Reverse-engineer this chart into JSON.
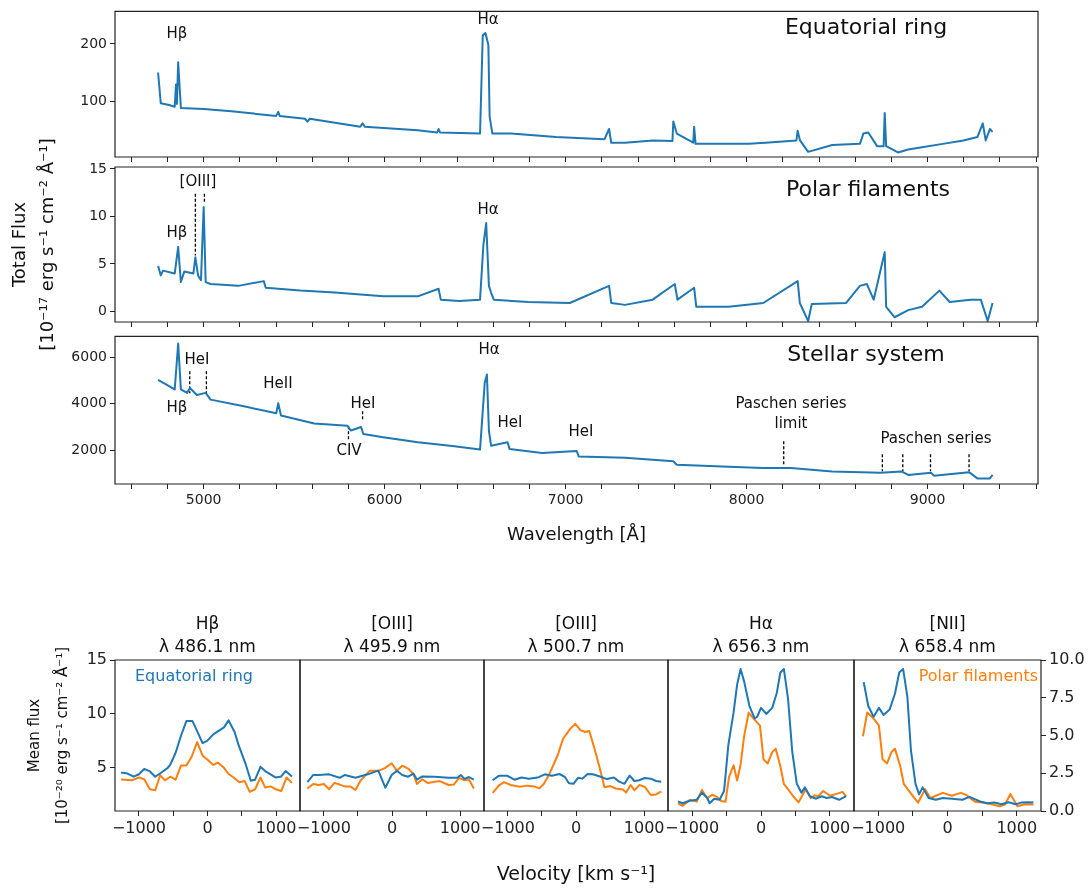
{
  "chart_data": [
    {
      "type": "line",
      "annotations": [
        "Equatorial ring",
        "Hβ",
        "Hα"
      ],
      "tick_labels": "y",
      "series": [
        {
          "color": "#1f77b4",
          "x": [
            4748,
            4763,
            4809,
            4840,
            4847,
            4852,
            4859,
            4874,
            5000,
            5153,
            5400,
            5412,
            5420,
            5560,
            5573,
            5586,
            5865,
            5878,
            5890,
            6183,
            6290,
            6298,
            6306,
            6527,
            6542,
            6557,
            6573,
            6580,
            6595,
            6698,
            6947,
            7214,
            7240,
            7252,
            7328,
            7481,
            7590,
            7595,
            7614,
            7705,
            7710,
            7718,
            7901,
            8015,
            8275,
            8282,
            8295,
            8340,
            8473,
            8626,
            8645,
            8672,
            8721,
            8757,
            8763,
            8771,
            8836,
            8893,
            8969,
            9084,
            9198,
            9275,
            9305,
            9321,
            9344,
            9359
          ],
          "values": [
            150,
            96,
            93,
            90,
            129,
            95,
            168,
            88,
            86,
            82,
            74,
            81,
            74,
            69,
            64,
            69,
            55,
            61,
            55,
            49,
            45,
            51,
            45,
            43,
            215,
            219,
            198,
            73,
            43,
            43,
            37,
            33,
            51,
            27,
            27,
            31,
            30,
            64,
            43,
            27,
            55,
            25,
            25,
            25,
            31,
            48,
            31,
            11,
            23,
            25,
            43,
            45,
            21,
            21,
            79,
            21,
            10,
            15,
            19,
            25,
            31,
            37,
            61,
            31,
            51,
            46
          ]
        }
      ],
      "xlim": [
        4510,
        9610
      ],
      "xticks": [
        {
          "value": 4600,
          "label": null
        },
        {
          "value": 4800,
          "label": null
        },
        5000,
        {
          "value": 5200,
          "label": null
        },
        {
          "value": 5400,
          "label": null
        },
        {
          "value": 5600,
          "label": null
        },
        {
          "value": 5800,
          "label": null
        },
        6000,
        {
          "value": 6200,
          "label": null
        },
        {
          "value": 6400,
          "label": null
        },
        {
          "value": 6600,
          "label": null
        },
        {
          "value": 6800,
          "label": null
        },
        7000,
        {
          "value": 7200,
          "label": null
        },
        {
          "value": 7400,
          "label": null
        },
        {
          "value": 7600,
          "label": null
        },
        {
          "value": 7800,
          "label": null
        },
        8000,
        {
          "value": 8200,
          "label": null
        },
        {
          "value": 8400,
          "label": null
        },
        {
          "value": 8600,
          "label": null
        },
        {
          "value": 8800,
          "label": null
        },
        9000,
        {
          "value": 9200,
          "label": null
        },
        {
          "value": 9400,
          "label": null
        },
        {
          "value": 9600,
          "label": null
        }
      ],
      "ylim": [
        2,
        257
      ],
      "yticks": [
        100,
        200
      ]
    },
    {
      "type": "line",
      "ylabel": "Total Flux\n[10⁻¹⁷ erg s⁻¹ cm⁻² Å⁻¹]",
      "annotations": [
        "Polar filaments",
        "Hβ",
        "[OIII]",
        "Hα"
      ],
      "tick_labels": "y",
      "series": [
        {
          "color": "#1f77b4",
          "x": [
            4748,
            4763,
            4775,
            4840,
            4859,
            4874,
            4893,
            4943,
            4954,
            4969,
            4985,
            5000,
            5011,
            5038,
            5191,
            5332,
            5343,
            5534,
            5725,
            5992,
            6183,
            6298,
            6310,
            6412,
            6527,
            6546,
            6561,
            6576,
            6588,
            6603,
            6794,
            7023,
            7240,
            7252,
            7328,
            7481,
            7603,
            7618,
            7710,
            7722,
            7901,
            8092,
            8282,
            8294,
            8340,
            8360,
            8550,
            8626,
            8664,
            8702,
            8763,
            8771,
            8817,
            8893,
            8969,
            9065,
            9122,
            9237,
            9294,
            9332,
            9359
          ],
          "values": [
            4.8,
            3.8,
            4.3,
            4.0,
            6.8,
            3.1,
            4.2,
            4.0,
            5.7,
            3.8,
            3.3,
            11.0,
            3.1,
            2.9,
            2.7,
            3.2,
            2.5,
            2.2,
            2.0,
            1.6,
            1.6,
            2.4,
            1.25,
            1.1,
            1.25,
            7.1,
            9.3,
            2.7,
            2.0,
            1.25,
            1.0,
            0.9,
            2.7,
            0.9,
            0.7,
            1.25,
            2.9,
            1.25,
            2.5,
            0.5,
            0.5,
            0.9,
            3.2,
            0.9,
            -1.0,
            0.8,
            0.9,
            2.7,
            2.9,
            1.25,
            6.25,
            0.5,
            -0.6,
            0.15,
            0.5,
            2.2,
            1.0,
            1.25,
            1.25,
            -1.0,
            0.9
          ]
        },
        {
          "color": "#000000",
          "line_style": "dashed",
          "x": [
            4954,
            4954,
            null,
            5004,
            5004
          ],
          "values": [
            12.4,
            5.9,
            null,
            12.4,
            11.4
          ]
        }
      ],
      "xlim": [
        4510,
        9610
      ],
      "xticks": [
        {
          "value": 4600,
          "label": null
        },
        {
          "value": 4800,
          "label": null
        },
        5000,
        {
          "value": 5200,
          "label": null
        },
        {
          "value": 5400,
          "label": null
        },
        {
          "value": 5600,
          "label": null
        },
        {
          "value": 5800,
          "label": null
        },
        6000,
        {
          "value": 6200,
          "label": null
        },
        {
          "value": 6400,
          "label": null
        },
        {
          "value": 6600,
          "label": null
        },
        {
          "value": 6800,
          "label": null
        },
        7000,
        {
          "value": 7200,
          "label": null
        },
        {
          "value": 7400,
          "label": null
        },
        {
          "value": 7600,
          "label": null
        },
        {
          "value": 7800,
          "label": null
        },
        8000,
        {
          "value": 8200,
          "label": null
        },
        {
          "value": 8400,
          "label": null
        },
        {
          "value": 8600,
          "label": null
        },
        {
          "value": 8800,
          "label": null
        },
        9000,
        {
          "value": 9200,
          "label": null
        },
        {
          "value": 9400,
          "label": null
        },
        {
          "value": 9600,
          "label": null
        }
      ],
      "ylim": [
        -1.1,
        15.2
      ],
      "yticks": [
        0,
        5,
        10,
        15
      ]
    },
    {
      "type": "line",
      "xlabel": "Wavelength [Å]",
      "annotations": [
        "Stellar system",
        "Hβ",
        "HeI",
        "HeII",
        "HeI",
        "CIV",
        "Hα",
        "HeI",
        "HeI",
        "Paschen series\nlimit",
        "Paschen series"
      ],
      "series": [
        {
          "color": "#1f77b4",
          "x": [
            4748,
            4809,
            4840,
            4859,
            4874,
            4908,
            4924,
            4962,
            5011,
            5038,
            5229,
            5401,
            5412,
            5427,
            5611,
            5794,
            5813,
            5870,
            5882,
            5992,
            6183,
            6374,
            6527,
            6553,
            6565,
            6576,
            6588,
            6679,
            6690,
            6870,
            7061,
            7072,
            7328,
            7595,
            7614,
            7901,
            8092,
            8244,
            8473,
            8740,
            8855,
            8893,
            9019,
            9035,
            9229,
            9275,
            9344,
            9359
          ],
          "values": [
            5030,
            4765,
            4620,
            6590,
            4620,
            4470,
            4680,
            4380,
            4470,
            4180,
            3880,
            3590,
            4030,
            3500,
            3150,
            3060,
            2850,
            3000,
            2700,
            2560,
            2350,
            2180,
            2030,
            4910,
            5260,
            2850,
            2200,
            2350,
            2060,
            1880,
            1970,
            1735,
            1680,
            1530,
            1380,
            1290,
            1235,
            1235,
            1090,
            1030,
            1090,
            940,
            1030,
            910,
            1060,
            790,
            790,
            940
          ]
        },
        {
          "color": "#000000",
          "line_style": "dashed",
          "x": [
            4923,
            4923,
            null,
            5015,
            5015,
            null,
            5878,
            5878,
            null,
            5800,
            5800,
            null,
            8205,
            8205,
            null,
            8750,
            8750,
            null,
            8863,
            8863,
            null,
            9016,
            9016,
            null,
            9229,
            9229
          ],
          "values": [
            5400,
            4450,
            null,
            5400,
            4450,
            null,
            3680,
            3250,
            null,
            3030,
            2390,
            null,
            2390,
            1310,
            null,
            1830,
            1100,
            null,
            1830,
            1100,
            null,
            1830,
            1100,
            null,
            1830,
            1100
          ]
        }
      ],
      "xlim": [
        4510,
        9610
      ],
      "xticks": [
        {
          "value": 4600,
          "label": null
        },
        {
          "value": 4800,
          "label": null
        },
        5000,
        {
          "value": 5200,
          "label": null
        },
        {
          "value": 5400,
          "label": null
        },
        {
          "value": 5600,
          "label": null
        },
        {
          "value": 5800,
          "label": null
        },
        6000,
        {
          "value": 6200,
          "label": null
        },
        {
          "value": 6400,
          "label": null
        },
        {
          "value": 6600,
          "label": null
        },
        {
          "value": 6800,
          "label": null
        },
        7000,
        {
          "value": 7200,
          "label": null
        },
        {
          "value": 7400,
          "label": null
        },
        {
          "value": 7600,
          "label": null
        },
        {
          "value": 7800,
          "label": null
        },
        8000,
        {
          "value": 8200,
          "label": null
        },
        {
          "value": 8400,
          "label": null
        },
        {
          "value": 8600,
          "label": null
        },
        {
          "value": 8800,
          "label": null
        },
        9000,
        {
          "value": 9200,
          "label": null
        },
        {
          "value": 9400,
          "label": null
        },
        {
          "value": 9600,
          "label": null
        }
      ],
      "ylim": [
        550,
        6900
      ],
      "yticks": [
        2000,
        4000,
        6000
      ]
    },
    {
      "type": "line",
      "title": "Hβ",
      "subtitle": "λ 486.1 nm",
      "ylabel": "Mean flux\n[10⁻²⁰ erg s⁻¹ cm⁻² Å⁻¹]",
      "legend": "top left",
      "tick_labels": [
        "x",
        "y"
      ],
      "y2lim": [
        0,
        10
      ],
      "series": [
        {
          "name": "Equatorial ring",
          "color": "#1f77b4",
          "x": [
            -1261,
            -1167,
            -1078,
            -1000,
            -924,
            -840,
            -762,
            -674,
            -580,
            -543,
            -465,
            -386,
            -308,
            -219,
            -151,
            -73,
            -5,
            84,
            240,
            308,
            397,
            449,
            554,
            632,
            695,
            773,
            841,
            998,
            1076,
            1139,
            1233
          ],
          "values": [
            4.57,
            4.47,
            4.18,
            4.41,
            4.9,
            4.67,
            4.18,
            4.57,
            5.0,
            5.3,
            6.4,
            8.0,
            9.34,
            9.34,
            8.4,
            7.3,
            7.5,
            8.1,
            8.75,
            9.4,
            8.3,
            7.2,
            5.4,
            3.8,
            3.9,
            5.1,
            4.7,
            4.1,
            4.2,
            4.7,
            4.2
          ]
        },
        {
          "color": "#ff7f0e",
          "axis": "y2",
          "x": [
            -1261,
            -1104,
            -1000,
            -924,
            -840,
            -762,
            -690,
            -622,
            -543,
            -465,
            -386,
            -308,
            -230,
            -151,
            -73,
            5,
            84,
            152,
            240,
            308,
            381,
            465,
            543,
            616,
            695,
            773,
            841,
            920,
            998,
            1076,
            1154,
            1233
          ],
          "values": [
            2.08,
            2.03,
            2.22,
            2.1,
            1.44,
            1.37,
            2.38,
            2.03,
            2.27,
            2.08,
            3.02,
            3.02,
            3.61,
            4.56,
            3.68,
            3.38,
            3.05,
            3.21,
            2.86,
            2.45,
            2.22,
            1.91,
            1.98,
            1.27,
            1.44,
            2.22,
            1.56,
            1.63,
            1.44,
            1.32,
            2.22,
            1.86
          ]
        }
      ],
      "xlim": [
        -1350,
        1350
      ],
      "xticks": [
        {
          "value": -1000,
          "label": "−1000"
        },
        {
          "value": -500,
          "label": null
        },
        0,
        {
          "value": 500,
          "label": null
        },
        1000
      ],
      "ylim": [
        1,
        15
      ],
      "yticks": [
        5,
        10,
        15
      ]
    },
    {
      "type": "line",
      "title": "[OIII]",
      "subtitle": "λ 495.9 nm",
      "tick_labels": "x",
      "series": [
        {
          "color": "#1f77b4",
          "x": [
            -1242,
            -1155,
            -1077,
            -923,
            -768,
            -691,
            -536,
            -356,
            -201,
            -98,
            -5,
            72,
            150,
            237,
            314,
            366,
            443,
            624,
            830,
            959,
            1010,
            1062,
            1129,
            1201
          ],
          "values": [
            3.68,
            4.34,
            4.34,
            4.4,
            4.08,
            4.34,
            4.08,
            4.4,
            4.74,
            3.16,
            4.34,
            4.74,
            4.34,
            4.18,
            4.47,
            3.91,
            4.21,
            4.18,
            4.08,
            4.08,
            4.34,
            3.98,
            4.15,
            3.91
          ]
        },
        {
          "color": "#ff7f0e",
          "axis": "y2",
          "x": [
            -1242,
            -1155,
            -1077,
            -1000,
            -923,
            -845,
            -768,
            -691,
            -613,
            -536,
            -459,
            -330,
            -201,
            -98,
            -5,
            72,
            150,
            237,
            314,
            366,
            443,
            521,
            701,
            830,
            907,
            985,
            1062,
            1129,
            1201
          ],
          "values": [
            1.49,
            1.79,
            1.72,
            1.79,
            1.44,
            1.86,
            1.75,
            1.63,
            1.63,
            1.39,
            2.03,
            2.66,
            2.66,
            2.86,
            3.16,
            2.66,
            3.0,
            2.81,
            2.45,
            1.79,
            2.1,
            1.86,
            1.98,
            1.72,
            1.75,
            2.19,
            2.03,
            2.08,
            1.49
          ]
        }
      ],
      "xlim": [
        -1350,
        1350
      ],
      "xticks": [
        {
          "value": -1000,
          "label": "−1000"
        },
        {
          "value": -500,
          "label": null
        },
        0,
        {
          "value": 500,
          "label": null
        },
        1000
      ],
      "ylim": [
        1,
        15
      ],
      "y2lim": [
        0,
        10
      ]
    },
    {
      "type": "line",
      "title": "[OIII]",
      "subtitle": "λ 500.7 nm",
      "xlabel": "Velocity [km s⁻¹]",
      "tick_labels": "x",
      "series": [
        {
          "color": "#1f77b4",
          "x": [
            -1223,
            -1134,
            -1006,
            -904,
            -800,
            -692,
            -562,
            -458,
            -354,
            -243,
            -165,
            -104,
            -37,
            30,
            92,
            170,
            247,
            350,
            453,
            556,
            633,
            711,
            788,
            855,
            927,
            1010,
            1097,
            1174,
            1251
          ],
          "values": [
            3.85,
            4.26,
            4.26,
            3.9,
            4.1,
            4.0,
            4.1,
            4.4,
            4.26,
            4.43,
            4.17,
            3.58,
            3.52,
            4.08,
            4.0,
            4.42,
            4.4,
            4.2,
            3.96,
            4.1,
            3.72,
            3.52,
            4.28,
            3.78,
            3.85,
            4.06,
            4.0,
            3.78,
            3.72
          ]
        },
        {
          "color": "#ff7f0e",
          "axis": "y2",
          "x": [
            -1223,
            -1134,
            -1057,
            -955,
            -825,
            -720,
            -615,
            -537,
            -474,
            -397,
            -268,
            -191,
            -89,
            -11,
            66,
            133,
            195,
            273,
            350,
            417,
            505,
            582,
            685,
            736,
            803,
            855,
            932,
            1010,
            1097,
            1174,
            1251
          ],
          "values": [
            1.2,
            1.68,
            1.91,
            1.72,
            1.6,
            1.68,
            1.63,
            1.5,
            1.79,
            2.38,
            3.71,
            4.77,
            5.42,
            5.77,
            5.36,
            5.23,
            5.3,
            4.1,
            2.82,
            1.58,
            1.65,
            1.49,
            1.42,
            1.22,
            1.72,
            1.37,
            1.72,
            1.6,
            1.06,
            1.1,
            1.3
          ]
        }
      ],
      "xlim": [
        -1350,
        1350
      ],
      "xticks": [
        {
          "value": -1000,
          "label": "−1000"
        },
        {
          "value": -500,
          "label": null
        },
        0,
        {
          "value": 500,
          "label": null
        },
        1000
      ],
      "ylim": [
        1,
        15
      ],
      "y2lim": [
        0,
        10
      ]
    },
    {
      "type": "line",
      "title": "Hα",
      "subtitle": "λ 656.3 nm",
      "tick_labels": "x",
      "series": [
        {
          "color": "#1f77b4",
          "x": [
            -1204,
            -1138,
            -1036,
            -934,
            -857,
            -781,
            -745,
            -679,
            -602,
            -536,
            -474,
            -398,
            -347,
            -296,
            -245,
            -168,
            -92,
            -56,
            0,
            77,
            163,
            230,
            281,
            332,
            393,
            454,
            520,
            587,
            638,
            709,
            801,
            878,
            954,
            1031,
            1133,
            1235
          ],
          "values": [
            1.88,
            1.72,
            1.95,
            2.04,
            2.7,
            2.2,
            1.72,
            2.14,
            2.04,
            2.86,
            7.12,
            10.14,
            12.7,
            14.17,
            13.02,
            10.73,
            9.58,
            9.74,
            10.56,
            10.0,
            10.56,
            11.97,
            13.84,
            14.17,
            11.38,
            6.47,
            3.52,
            2.7,
            3.19,
            2.37,
            2.14,
            2.37,
            2.2,
            2.3,
            2.04,
            2.37
          ]
        },
        {
          "color": "#ff7f0e",
          "axis": "y2",
          "x": [
            -1204,
            -1138,
            -1036,
            -934,
            -857,
            -781,
            -704,
            -628,
            -577,
            -515,
            -464,
            -398,
            -347,
            -296,
            -245,
            -179,
            -107,
            -15,
            36,
            97,
            163,
            214,
            281,
            332,
            393,
            469,
            546,
            648,
            724,
            776,
            827,
            903,
            1005,
            1107,
            1184,
            1235
          ],
          "values": [
            0.5,
            0.34,
            0.73,
            0.62,
            1.39,
            0.85,
            1.08,
            0.9,
            0.66,
            0.62,
            2.26,
            3.03,
            2.02,
            3.08,
            4.95,
            6.52,
            6.12,
            5.65,
            3.43,
            3.15,
            3.9,
            4.13,
            2.96,
            1.79,
            1.44,
            0.97,
            0.57,
            1.44,
            0.85,
            1.04,
            0.97,
            1.32,
            1.01,
            1.15,
            1.27,
            0.97
          ]
        }
      ],
      "xlim": [
        -1350,
        1350
      ],
      "xticks": [
        {
          "value": -1000,
          "label": "−1000"
        },
        {
          "value": -500,
          "label": null
        },
        0,
        {
          "value": 500,
          "label": null
        },
        1000
      ],
      "ylim": [
        1,
        15
      ],
      "y2lim": [
        0,
        10
      ]
    },
    {
      "type": "line",
      "title": "[NII]",
      "subtitle": "λ 658.4 nm",
      "legend": "top right",
      "tick_labels": [
        "x",
        "y2"
      ],
      "series": [
        {
          "color": "#1f77b4",
          "x": [
            -1210,
            -1144,
            -1067,
            -990,
            -923,
            -836,
            -759,
            -697,
            -641,
            -579,
            -528,
            -462,
            -410,
            -359,
            -272,
            -169,
            -67,
            62,
            215,
            318,
            472,
            574,
            677,
            779,
            882,
            985,
            1062,
            1164,
            1241
          ],
          "values": [
            12.95,
            10.73,
            9.74,
            10.56,
            9.91,
            10.4,
            11.87,
            13.84,
            14.17,
            11.55,
            6.63,
            3.52,
            2.54,
            3.19,
            2.2,
            2.04,
            2.2,
            2.14,
            2.04,
            2.31,
            1.88,
            1.72,
            1.78,
            1.62,
            1.81,
            1.62,
            1.78,
            1.81,
            1.78
          ]
        },
        {
          "name": "Polar filaments",
          "color": "#ff7f0e",
          "axis": "y2",
          "x": [
            -1221,
            -1159,
            -1067,
            -990,
            -938,
            -872,
            -810,
            -759,
            -682,
            -631,
            -554,
            -477,
            -426,
            -323,
            -246,
            -169,
            -67,
            62,
            190,
            267,
            395,
            523,
            651,
            754,
            831,
            908,
            1010,
            1113,
            1241
          ],
          "values": [
            4.95,
            6.52,
            6.12,
            5.65,
            3.43,
            3.15,
            3.9,
            4.13,
            2.96,
            1.79,
            1.32,
            0.85,
            0.55,
            1.44,
            0.85,
            1.01,
            1.2,
            1.01,
            1.2,
            1.08,
            0.62,
            0.55,
            0.43,
            0.31,
            0.43,
            1.13,
            0.31,
            0.45,
            0.43
          ]
        }
      ],
      "xlim": [
        -1350,
        1350
      ],
      "xticks": [
        {
          "value": -1000,
          "label": "−1000"
        },
        {
          "value": -500,
          "label": null
        },
        0,
        {
          "value": 500,
          "label": null
        },
        1000
      ],
      "ylim": [
        1,
        15
      ],
      "y2lim": [
        0,
        10
      ],
      "y2ticks": [
        {
          "value": 0,
          "label": "0.0"
        },
        2.5,
        {
          "value": 5,
          "label": "5.0"
        },
        7.5,
        {
          "value": 10,
          "label": "10.0"
        }
      ]
    }
  ]
}
